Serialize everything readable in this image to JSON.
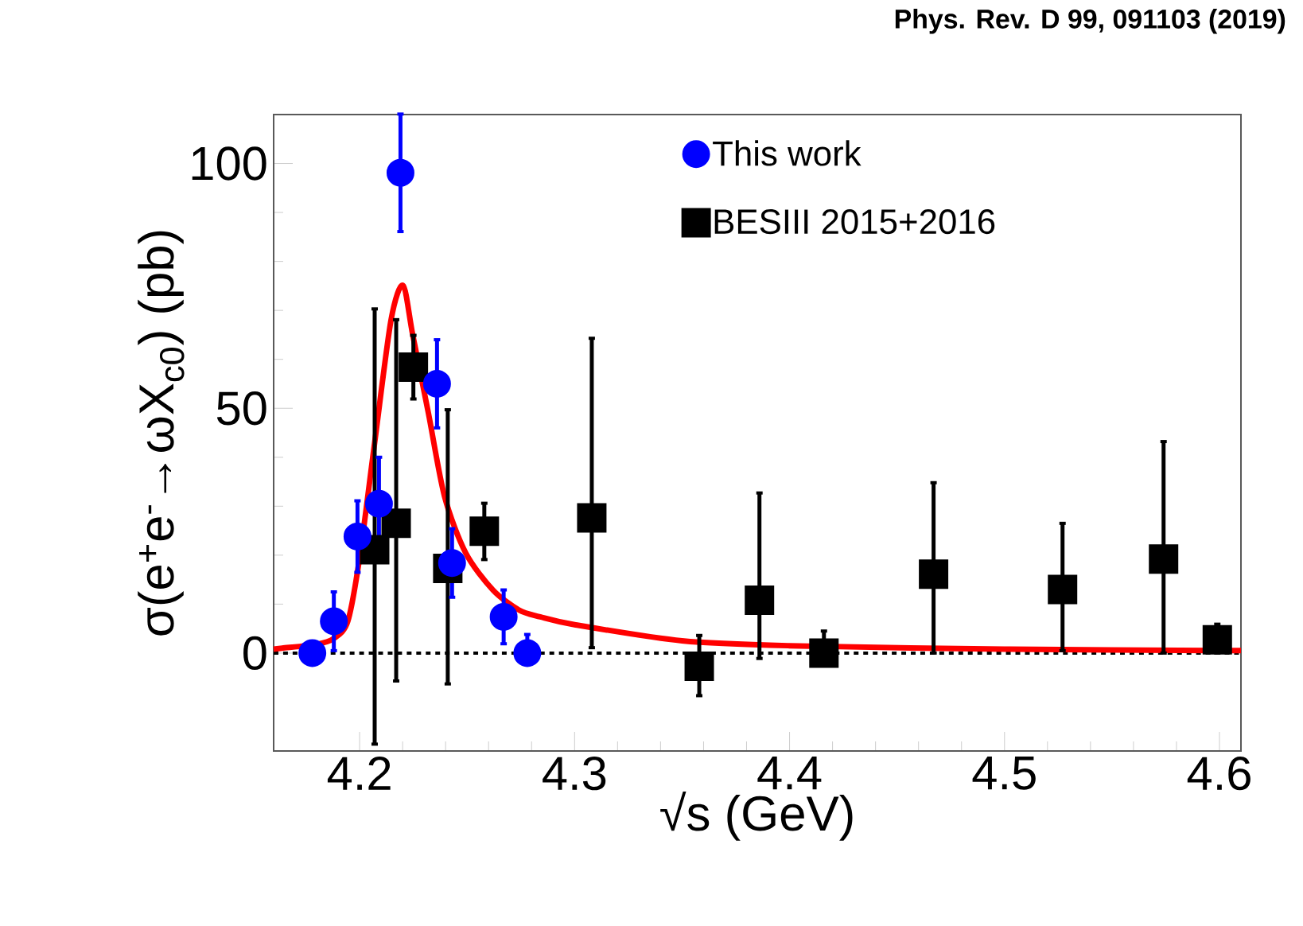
{
  "chart_data": {
    "type": "scatter",
    "xlabel": "√s (GeV)",
    "ylabel": "σ(e$^{+}$e$^{-}$→ωX$_{c0}$) (pb)",
    "annotations": [
      "Phys. Rev. D 99, 091103 (2019)"
    ],
    "xlim": [
      4.16,
      4.61
    ],
    "ylim": [
      -20,
      110
    ],
    "xticks": [
      4.2,
      4.3,
      4.4,
      4.5,
      4.6
    ],
    "yticks": [
      0,
      50,
      100
    ],
    "legend": "top right",
    "grid": false,
    "ref_lines": [
      {
        "axis": "y",
        "value": 0,
        "color": "#000000",
        "line_style": "dotted"
      }
    ],
    "series": [
      {
        "name": "This work",
        "marker": "circle",
        "color": "#0000ff",
        "x": [
          4.178,
          4.188,
          4.199,
          4.209,
          4.219,
          4.236,
          4.243,
          4.267,
          4.278
        ],
        "values": [
          0,
          6.5,
          23.8,
          30.5,
          98.1,
          55.0,
          18.4,
          7.4,
          0
        ],
        "errors": [
          null,
          6,
          7.3,
          9.5,
          12,
          9,
          7,
          5.5,
          [
            0,
            3.8
          ]
        ]
      },
      {
        "name": "BESIII 2015+2016",
        "marker": "square",
        "color": "#000000",
        "x": [
          4.207,
          4.217,
          4.225,
          4.241,
          4.258,
          4.308,
          4.358,
          4.386,
          4.416,
          4.467,
          4.527,
          4.574,
          4.599
        ],
        "values": [
          21.1,
          26.5,
          58.4,
          17.3,
          24.9,
          27.6,
          -2.7,
          10.8,
          0,
          16.1,
          13.0,
          19.2,
          2.7
        ],
        "errors": [
          [
            -18.6,
            70.3
          ],
          [
            -5.7,
            68.1
          ],
          [
            51.9,
            64.9
          ],
          [
            -6.3,
            49.7
          ],
          [
            19.1,
            30.6
          ],
          [
            1.1,
            64.3
          ],
          [
            -8.7,
            3.6
          ],
          [
            -1.1,
            32.7
          ],
          [
            0,
            4.5
          ],
          [
            0,
            34.8
          ],
          [
            0.5,
            26.5
          ],
          [
            0,
            43.2
          ],
          [
            0,
            5.9
          ]
        ]
      },
      {
        "type": "line",
        "marker": "none",
        "color": "#ff0000",
        "x": [
          4.16,
          4.164,
          4.18,
          4.188,
          4.1945,
          4.2,
          4.207,
          4.2146,
          4.2202,
          4.2247,
          4.232,
          4.2395,
          4.2494,
          4.262,
          4.2741,
          4.284,
          4.3,
          4.35,
          4.4,
          4.5,
          4.61
        ],
        "values": [
          0.8,
          1,
          1.8,
          3,
          6.5,
          19.5,
          43,
          68,
          75.1,
          65,
          49,
          32,
          20.4,
          12.9,
          8.8,
          7.4,
          5.8,
          2.5,
          1.5,
          0.8,
          0.5
        ]
      }
    ]
  }
}
